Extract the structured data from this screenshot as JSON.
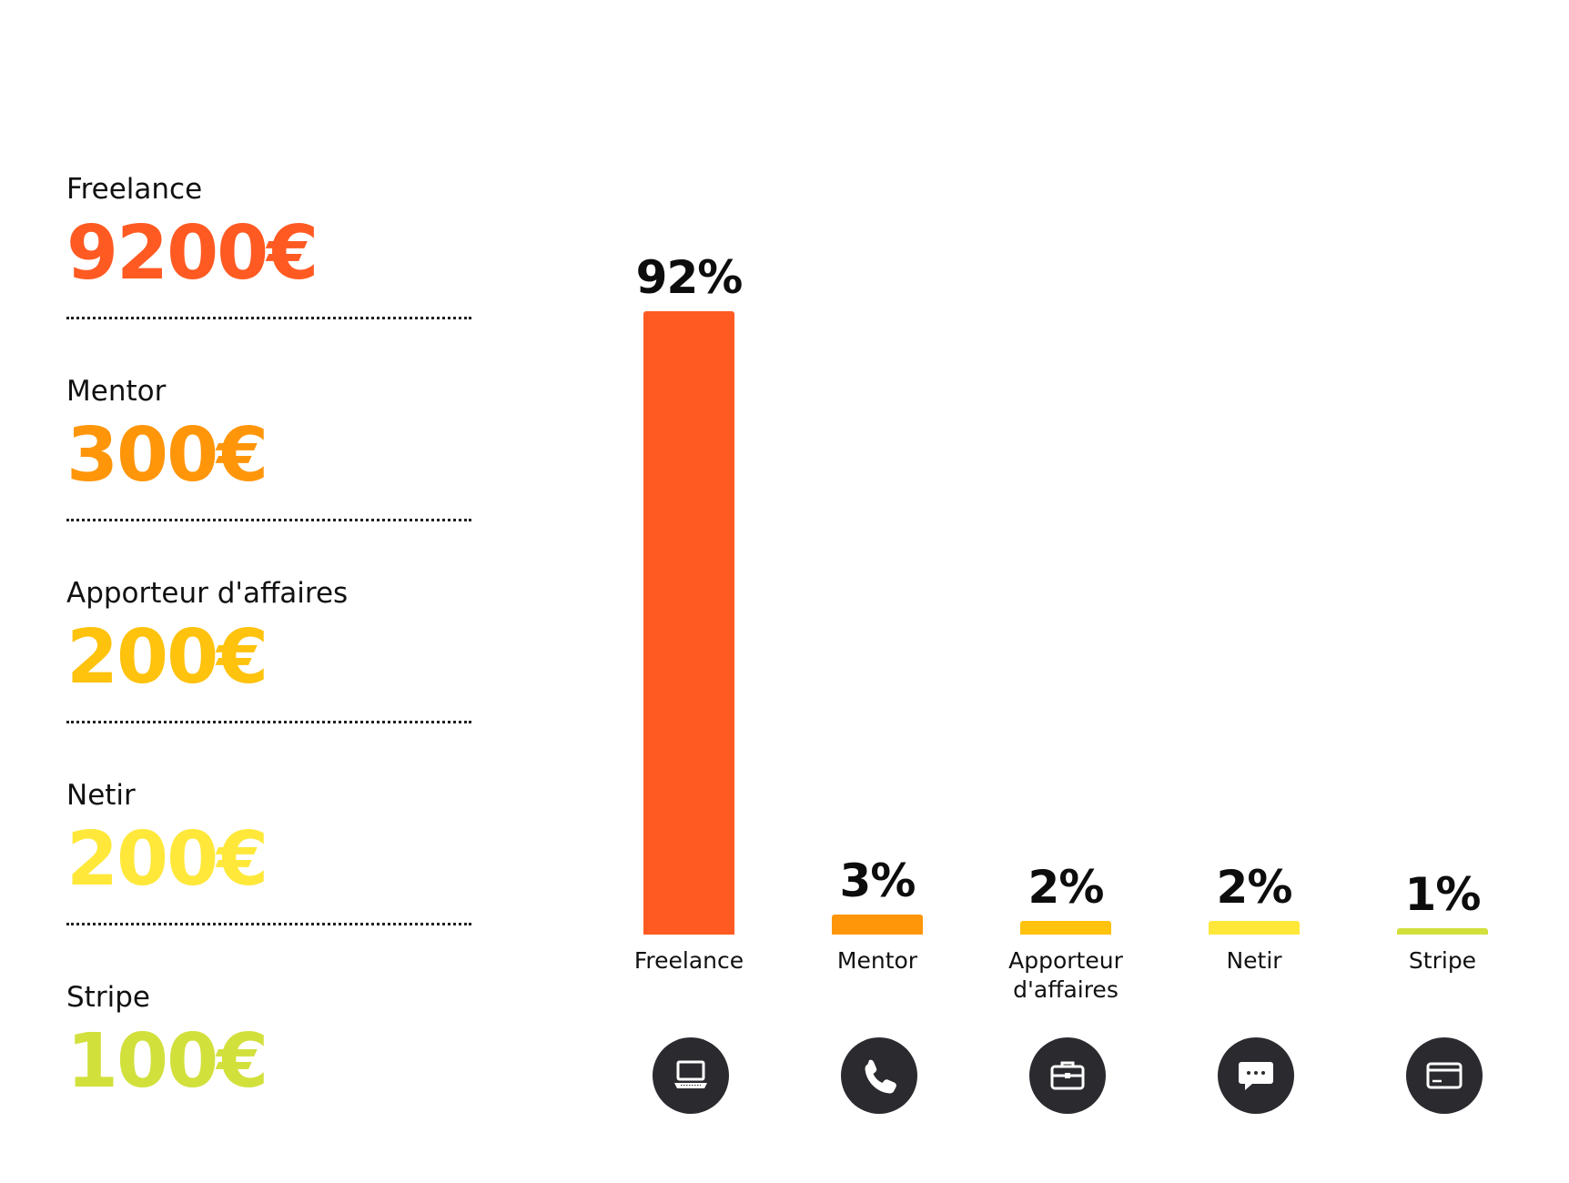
{
  "items": [
    {
      "label": "Freelance",
      "value": "9200€",
      "color": "#ff5a22"
    },
    {
      "label": "Mentor",
      "value": "300€",
      "color": "#ff960a"
    },
    {
      "label": "Apporteur d'affaires",
      "value": "200€",
      "color": "#ffc20d"
    },
    {
      "label": "Netir",
      "value": "200€",
      "color": "#ffe83a"
    },
    {
      "label": "Stripe",
      "value": "100€",
      "color": "#d2e03c"
    }
  ],
  "chart_data": {
    "type": "bar",
    "categories": [
      "Freelance",
      "Mentor",
      "Apporteur d'affaires",
      "Netir",
      "Stripe"
    ],
    "category_lines": [
      [
        "Freelance"
      ],
      [
        "Mentor"
      ],
      [
        "Apporteur",
        "d'affaires"
      ],
      [
        "Netir"
      ],
      [
        "Stripe"
      ]
    ],
    "values": [
      92,
      3,
      2,
      2,
      1
    ],
    "value_labels": [
      "92%",
      "3%",
      "2%",
      "2%",
      "1%"
    ],
    "colors": [
      "#ff5a22",
      "#ff960a",
      "#ffc20d",
      "#ffe83a",
      "#d2e03c"
    ],
    "icons": [
      "laptop-icon",
      "phone-icon",
      "briefcase-icon",
      "chat-icon",
      "credit-card-icon"
    ],
    "grid": false
  }
}
